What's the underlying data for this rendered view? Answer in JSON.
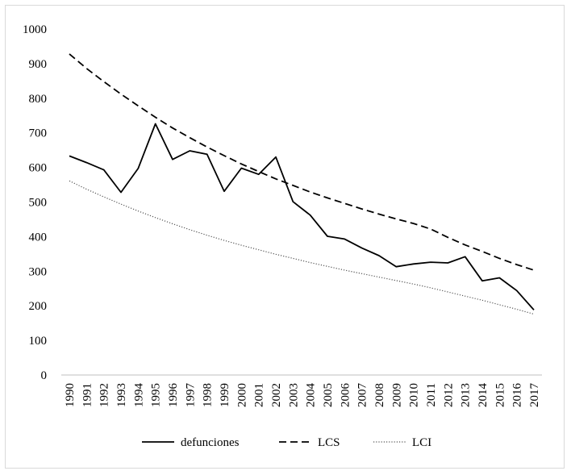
{
  "chart_data": {
    "type": "line",
    "title": "",
    "xlabel": "",
    "ylabel": "",
    "ylim": [
      0,
      1000
    ],
    "yticks": [
      0,
      100,
      200,
      300,
      400,
      500,
      600,
      700,
      800,
      900,
      1000
    ],
    "grid": false,
    "legend_position": "bottom",
    "categories": [
      "1990",
      "1991",
      "1992",
      "1993",
      "1994",
      "1995",
      "1996",
      "1997",
      "1998",
      "1999",
      "2000",
      "2001",
      "2002",
      "2003",
      "2004",
      "2005",
      "2006",
      "2007",
      "2008",
      "2009",
      "2010",
      "2011",
      "2012",
      "2013",
      "2014",
      "2015",
      "2016",
      "2017"
    ],
    "series": [
      {
        "name": "defunciones",
        "style": "solid",
        "color": "#000000",
        "values": [
          633,
          614,
          593,
          528,
          597,
          726,
          623,
          648,
          638,
          531,
          598,
          580,
          630,
          501,
          462,
          401,
          393,
          367,
          345,
          313,
          321,
          326,
          324,
          342,
          272,
          281,
          244,
          188
        ]
      },
      {
        "name": "LCS",
        "style": "dashed",
        "color": "#000000",
        "values": [
          928,
          886,
          848,
          812,
          778,
          745,
          714,
          686,
          659,
          634,
          610,
          588,
          567,
          548,
          529,
          512,
          496,
          480,
          465,
          451,
          438,
          422,
          398,
          376,
          357,
          337,
          319,
          303
        ]
      },
      {
        "name": "LCI",
        "style": "dotted",
        "color": "#555555",
        "values": [
          561,
          537,
          515,
          494,
          474,
          455,
          437,
          420,
          404,
          389,
          375,
          362,
          349,
          337,
          325,
          314,
          303,
          293,
          283,
          273,
          263,
          252,
          240,
          228,
          216,
          203,
          190,
          176
        ]
      }
    ]
  }
}
